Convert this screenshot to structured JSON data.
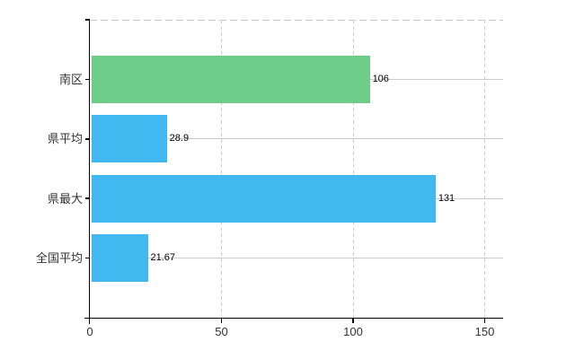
{
  "chart_data": {
    "type": "bar",
    "orientation": "horizontal",
    "categories": [
      "南区",
      "県平均",
      "県最大",
      "全国平均"
    ],
    "values": [
      106,
      28.9,
      131,
      21.67
    ],
    "value_labels": [
      "106",
      "28.9",
      "131",
      "21.67"
    ],
    "bar_colors": [
      "#6fcd8a",
      "#41b8f0",
      "#41b8f0",
      "#41b8f0"
    ],
    "x_ticks": [
      0,
      50,
      100,
      150
    ],
    "x_tick_labels": [
      "0",
      "50",
      "100",
      "150"
    ],
    "xlim": [
      0,
      157
    ],
    "grid": true,
    "legend_visible": false,
    "title": ""
  },
  "colors": {
    "bar_highlight": "#6fcd8a",
    "bar_default": "#41b8f0",
    "gridline": "#cccccc",
    "axis": "#000000",
    "category_text": "#333333",
    "value_text": "#000000",
    "background": "#ffffff"
  }
}
